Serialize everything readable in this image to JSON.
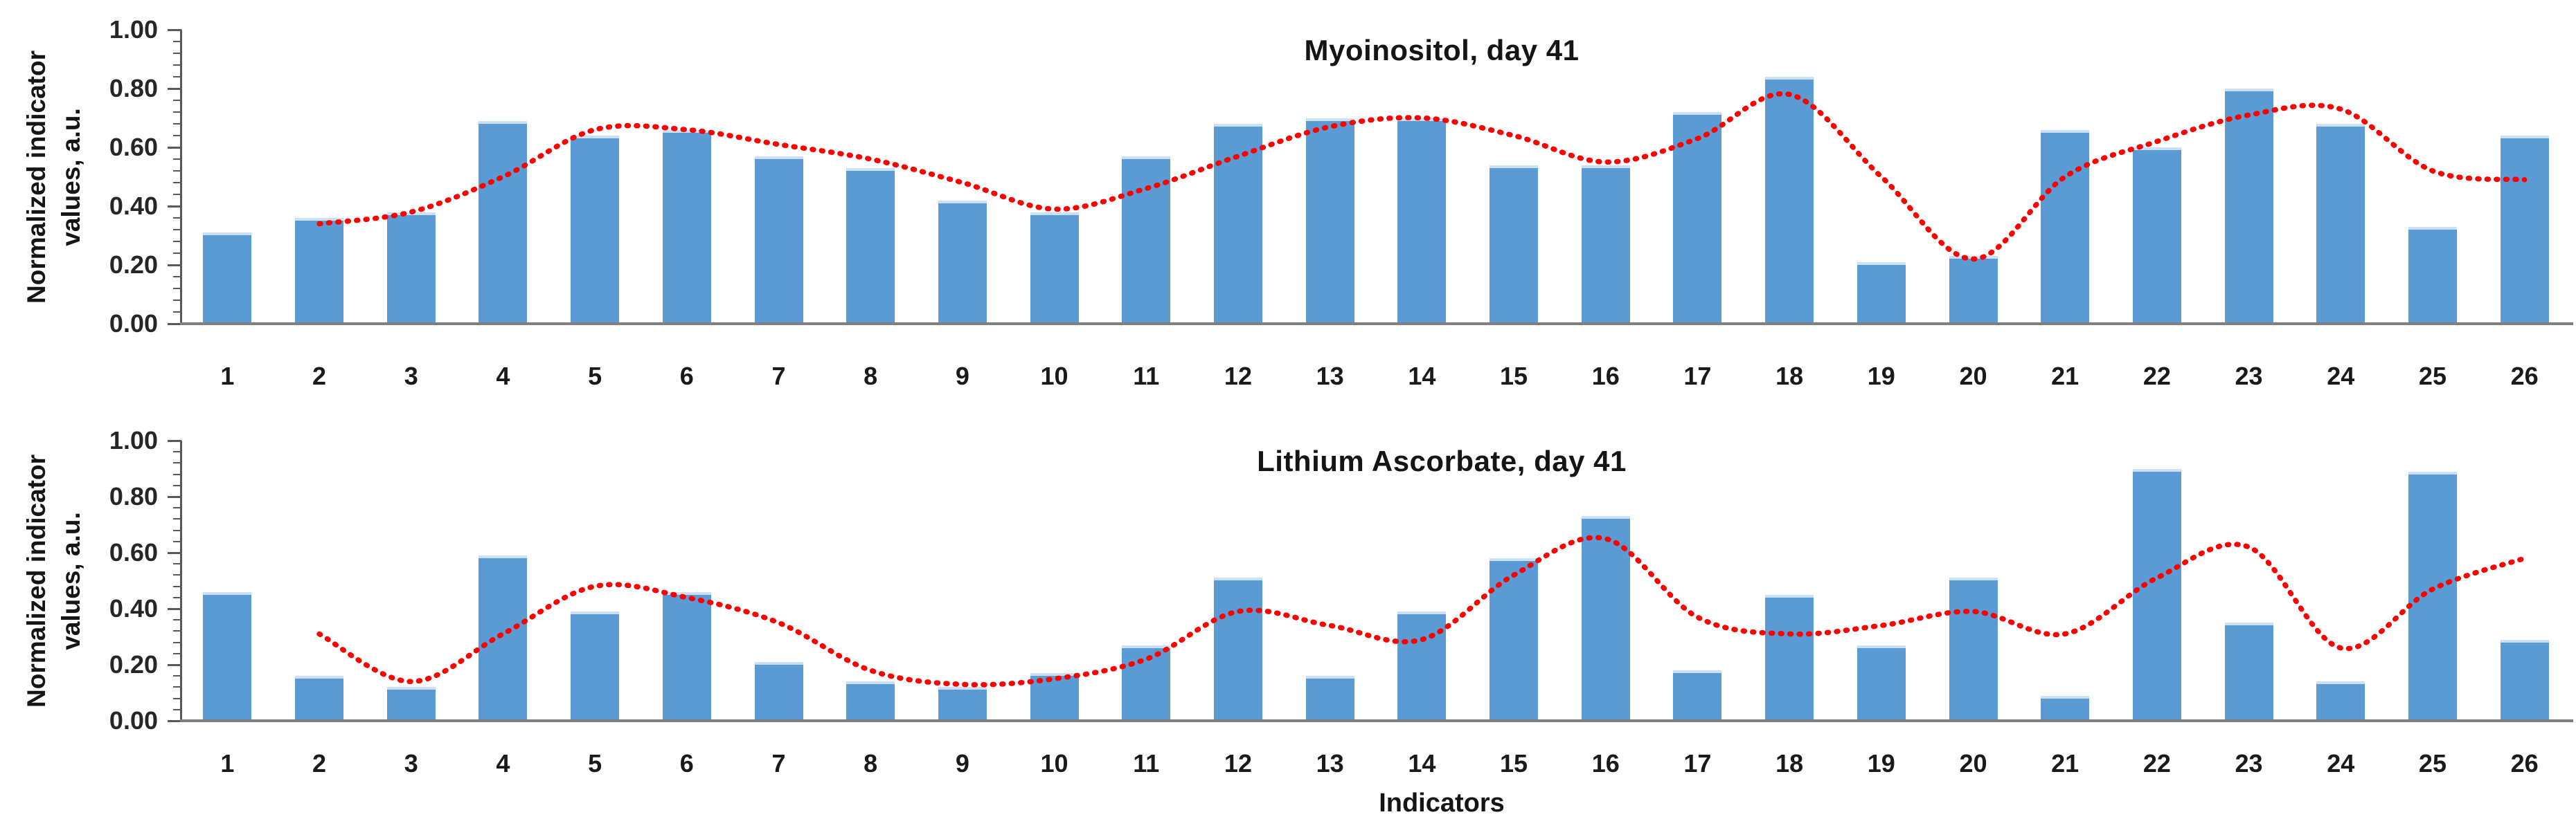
{
  "colors": {
    "bar_fill": "#5B9BD5",
    "bar_top_edge": "#CBE0F4",
    "trend_line": "#FF0000",
    "axis_line": "#595959",
    "baseline": "#7F7F7F",
    "text": "#1A1A1A",
    "background": "#FFFFFF"
  },
  "x_axis_title": "Indicators",
  "chart_data": [
    {
      "type": "bar",
      "title": "Myoinositol, day 41",
      "ylabel": "Normalized indicator values, a.u.",
      "ylabel_lines": [
        "Normalized indicator",
        "values, a.u."
      ],
      "xlabel": "",
      "ylim": [
        0,
        1
      ],
      "yticks": [
        "1.00",
        "0.80",
        "0.60",
        "0.40",
        "0.20",
        "0.00"
      ],
      "grid": false,
      "legend": false,
      "categories": [
        "1",
        "2",
        "3",
        "4",
        "5",
        "6",
        "7",
        "8",
        "9",
        "10",
        "11",
        "12",
        "13",
        "14",
        "15",
        "16",
        "17",
        "18",
        "19",
        "20",
        "21",
        "22",
        "23",
        "24",
        "25",
        "26"
      ],
      "series": [
        {
          "name": "bars",
          "type": "bar",
          "color": "#5B9BD5",
          "values": [
            0.31,
            0.36,
            0.38,
            0.69,
            0.64,
            0.66,
            0.57,
            0.53,
            0.42,
            0.38,
            0.57,
            0.68,
            0.7,
            0.7,
            0.54,
            0.54,
            0.72,
            0.84,
            0.21,
            0.23,
            0.66,
            0.6,
            0.8,
            0.68,
            0.33,
            0.64
          ]
        },
        {
          "name": "trend",
          "type": "line",
          "style": "dotted",
          "color": "#FF0000",
          "x": [
            2,
            3,
            4,
            5,
            6,
            7,
            8,
            9,
            10,
            11,
            12,
            13,
            14,
            15,
            16,
            17,
            18,
            19,
            20,
            21,
            22,
            23,
            24,
            25,
            26
          ],
          "values": [
            0.34,
            0.38,
            0.5,
            0.66,
            0.66,
            0.61,
            0.56,
            0.48,
            0.39,
            0.46,
            0.57,
            0.67,
            0.7,
            0.64,
            0.55,
            0.63,
            0.78,
            0.5,
            0.22,
            0.5,
            0.62,
            0.71,
            0.73,
            0.52,
            0.49
          ]
        }
      ]
    },
    {
      "type": "bar",
      "title": "Lithium Ascorbate, day 41",
      "ylabel": "Normalized indicator values, a.u.",
      "ylabel_lines": [
        "Normalized indicator",
        "values, a.u."
      ],
      "xlabel": "Indicators",
      "ylim": [
        0,
        1
      ],
      "yticks": [
        "1.00",
        "0.80",
        "0.60",
        "0.40",
        "0.20",
        "0.00"
      ],
      "grid": false,
      "legend": false,
      "categories": [
        "1",
        "2",
        "3",
        "4",
        "5",
        "6",
        "7",
        "8",
        "9",
        "10",
        "11",
        "12",
        "13",
        "14",
        "15",
        "16",
        "17",
        "18",
        "19",
        "20",
        "21",
        "22",
        "23",
        "24",
        "25",
        "26"
      ],
      "series": [
        {
          "name": "bars",
          "type": "bar",
          "color": "#5B9BD5",
          "values": [
            0.46,
            0.16,
            0.12,
            0.59,
            0.39,
            0.46,
            0.21,
            0.14,
            0.12,
            0.17,
            0.27,
            0.51,
            0.16,
            0.39,
            0.58,
            0.73,
            0.18,
            0.45,
            0.27,
            0.51,
            0.09,
            0.9,
            0.35,
            0.14,
            0.89,
            0.29
          ]
        },
        {
          "name": "trend",
          "type": "line",
          "style": "dotted",
          "color": "#FF0000",
          "x": [
            2,
            3,
            4,
            5,
            6,
            7,
            8,
            9,
            10,
            11,
            12,
            13,
            14,
            15,
            16,
            17,
            18,
            19,
            20,
            21,
            22,
            23,
            24,
            25,
            26
          ],
          "values": [
            0.31,
            0.14,
            0.31,
            0.48,
            0.44,
            0.35,
            0.18,
            0.13,
            0.15,
            0.22,
            0.39,
            0.34,
            0.29,
            0.52,
            0.65,
            0.37,
            0.31,
            0.34,
            0.39,
            0.31,
            0.51,
            0.62,
            0.26,
            0.47,
            0.58
          ]
        }
      ]
    }
  ]
}
